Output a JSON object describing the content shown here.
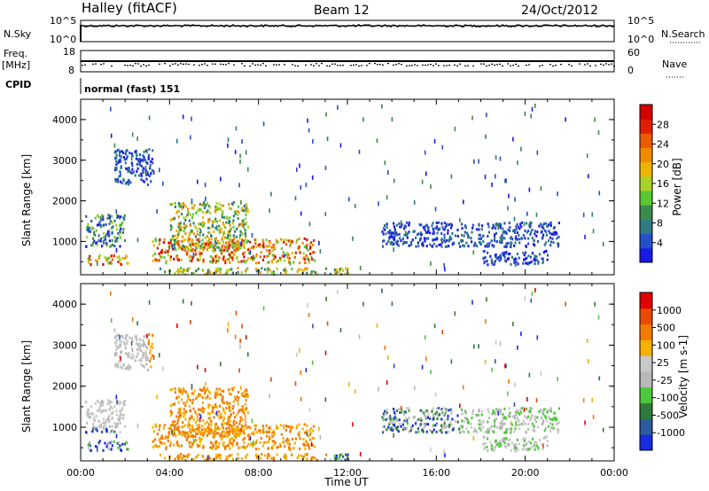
{
  "header": {
    "station": "Halley (fitACF)",
    "beam": "Beam 12",
    "date": "24/Oct/2012"
  },
  "noise_panel": {
    "left_label": "N.Sky",
    "left_ticks": [
      "10^5",
      "10^0"
    ],
    "right_ticks": [
      "10^5",
      "10^0"
    ],
    "right_label": "N.Search"
  },
  "freq_panel": {
    "left_label_1": "Freq.",
    "left_label_2": "[MHz]",
    "left_ticks": [
      "18",
      "8"
    ],
    "right_ticks": [
      "60",
      "0"
    ],
    "right_label": "Nave"
  },
  "cpid": {
    "label": "CPID",
    "value": "normal (fast) 151"
  },
  "chart_data": [
    {
      "type": "heatmap",
      "name": "power",
      "ylabel": "Slant Range [km]",
      "y_ticks": [
        "4000",
        "3000",
        "2000",
        "1000"
      ],
      "ylim": [
        180,
        4500
      ],
      "colorbar": {
        "label": "Power [dB]",
        "ticks": [
          "28",
          "24",
          "20",
          "16",
          "12",
          "8",
          "4"
        ],
        "range": [
          0,
          30
        ]
      },
      "scatter_regions_hours_km": [
        {
          "t": [
            0.2,
            2.0
          ],
          "r": [
            900,
            1700
          ],
          "level": "low-mid"
        },
        {
          "t": [
            0.3,
            2.2
          ],
          "r": [
            450,
            700
          ],
          "level": "high"
        },
        {
          "t": [
            1.5,
            3.2
          ],
          "r": [
            2400,
            3300
          ],
          "level": "low"
        },
        {
          "t": [
            3.2,
            6.5
          ],
          "r": [
            500,
            1100
          ],
          "level": "high"
        },
        {
          "t": [
            4.0,
            7.5
          ],
          "r": [
            800,
            2000
          ],
          "level": "mid"
        },
        {
          "t": [
            6.5,
            10.5
          ],
          "r": [
            500,
            1100
          ],
          "level": "high"
        },
        {
          "t": [
            3.5,
            12.0
          ],
          "r": [
            220,
            380
          ],
          "level": "mid"
        },
        {
          "t": [
            13.5,
            21.5
          ],
          "r": [
            900,
            1500
          ],
          "level": "low"
        },
        {
          "t": [
            18.0,
            21.0
          ],
          "r": [
            450,
            800
          ],
          "level": "low"
        }
      ]
    },
    {
      "type": "heatmap",
      "name": "velocity",
      "ylabel": "Slant Range [km]",
      "y_ticks": [
        "4000",
        "3000",
        "2000",
        "1000"
      ],
      "ylim": [
        180,
        4500
      ],
      "colorbar": {
        "label": "Velocity [m s-1]",
        "ticks": [
          "1000",
          "500",
          "100",
          "25",
          "-25",
          "-100",
          "-500",
          "-1000"
        ]
      },
      "xlabel": "Time UT",
      "x_ticks": [
        "00:00",
        "04:00",
        "08:00",
        "12:00",
        "16:00",
        "20:00",
        "00:00"
      ],
      "xlim": [
        0,
        24
      ]
    }
  ],
  "colors": {
    "power_scale": [
      "#1a1ae6",
      "#2550c8",
      "#2e7a82",
      "#3d8a4a",
      "#5ac832",
      "#a8d22a",
      "#f0b400",
      "#f08c00",
      "#ec5a00",
      "#e01e00",
      "#d20000"
    ],
    "velocity_scale": [
      "#1a2ae0",
      "#2d5a9c",
      "#2f7a3a",
      "#4cc83a",
      "#b8b8b8",
      "#c8c8c8",
      "#f6b000",
      "#f27a00",
      "#e84a00",
      "#e00000"
    ]
  }
}
